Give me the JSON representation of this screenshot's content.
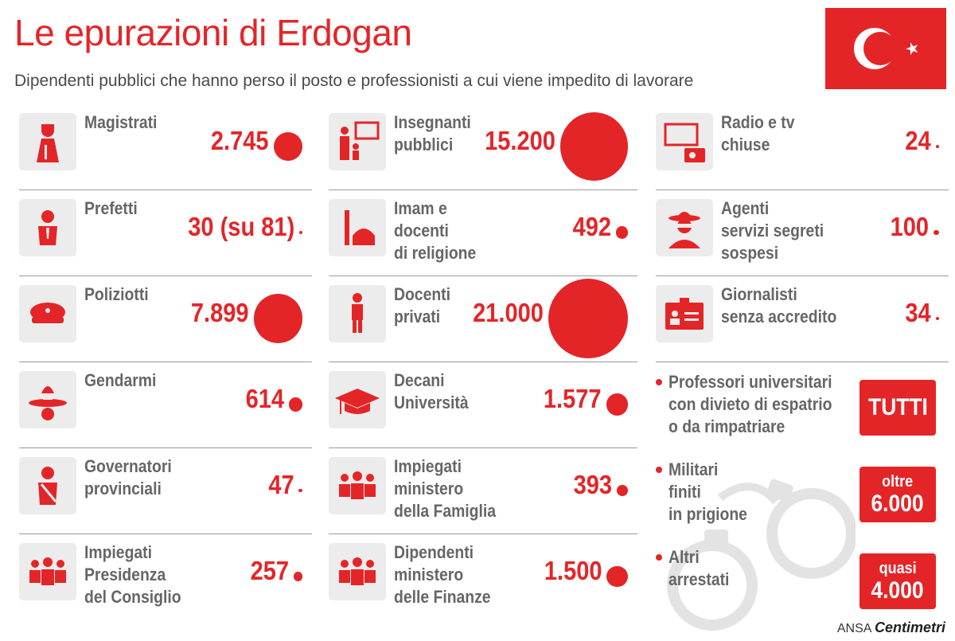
{
  "title": "Le epurazioni di Erdogan",
  "subtitle": "Dipendenti pubblici che hanno perso il posto e professionisti a cui viene impedito di lavorare",
  "colors": {
    "accent": "#e42528",
    "label": "#666666",
    "icon_bg": "#ececec"
  },
  "col1": [
    {
      "label": "Magistrati",
      "value": "2.745",
      "icon": "judge-icon"
    },
    {
      "label": "Prefetti",
      "value": "30 (su 81)",
      "icon": "prefect-icon"
    },
    {
      "label": "Poliziotti",
      "value": "7.899",
      "icon": "police-cap-icon"
    },
    {
      "label": "Gendarmi",
      "value": "614",
      "icon": "gendarme-icon"
    },
    {
      "label": "Governatori\nprovinciali",
      "value": "47",
      "icon": "governor-icon"
    },
    {
      "label": "Impiegati\nPresidenza\ndel Consiglio",
      "value": "257",
      "icon": "people-group-icon"
    }
  ],
  "col2": [
    {
      "label": "Insegnanti\npubblici",
      "value": "15.200",
      "icon": "teacher-icon"
    },
    {
      "label": "Imam e\ndocenti\ndi religione",
      "value": "492",
      "icon": "mosque-icon"
    },
    {
      "label": "Docenti\nprivati",
      "value": "21.000",
      "icon": "lecturer-icon"
    },
    {
      "label": "Decani\nUniversità",
      "value": "1.577",
      "icon": "graduation-cap-icon"
    },
    {
      "label": "Impiegati\nministero\ndella Famiglia",
      "value": "393",
      "icon": "people-group-icon"
    },
    {
      "label": "Dipendenti\nministero\ndelle Finanze",
      "value": "1.500",
      "icon": "people-group-icon"
    }
  ],
  "col3": [
    {
      "label": "Radio e tv\nchiuse",
      "value": "24",
      "icon": "tv-radio-icon"
    },
    {
      "label": "Agenti\nservizi segreti\nsospesi",
      "value": "100",
      "icon": "spy-icon"
    },
    {
      "label": "Giornalisti\nsenza accredito",
      "value": "34",
      "icon": "press-badge-icon"
    }
  ],
  "col3_extra": [
    {
      "label": "Professori universitari\ncon divieto di espatrio\no da rimpatriare",
      "box_small": "",
      "box_big": "TUTTI"
    },
    {
      "label": "Militari\nfiniti\nin prigione",
      "box_small": "oltre",
      "box_big": "6.000"
    },
    {
      "label": "Altri\narrestati",
      "box_small": "quasi",
      "box_big": "4.000"
    }
  ],
  "footer": {
    "agency": "ANSA",
    "brand": "Centimetri"
  }
}
